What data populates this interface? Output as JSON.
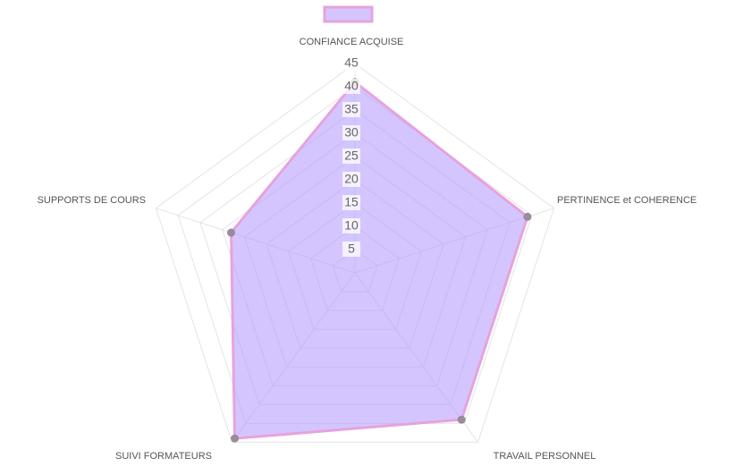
{
  "chart_data": {
    "type": "radar",
    "categories": [
      "CONFIANCE ACQUISE",
      "PERTINENCE et COHERENCE",
      "TRAVAIL PERSONNEL",
      "SUIVI FORMATEURS",
      "SUPPORTS DE COURS"
    ],
    "series": [
      {
        "color": "#e6a3dc",
        "fill": "rgba(178,150,255,0.55)",
        "point_color": "#9a8a9a",
        "values": [
          41,
          39,
          39,
          44,
          28
        ]
      }
    ],
    "rlim": [
      0,
      45
    ],
    "rticks": [
      5,
      10,
      15,
      20,
      25,
      30,
      35,
      40,
      45
    ],
    "grid": true,
    "legend": "top"
  }
}
